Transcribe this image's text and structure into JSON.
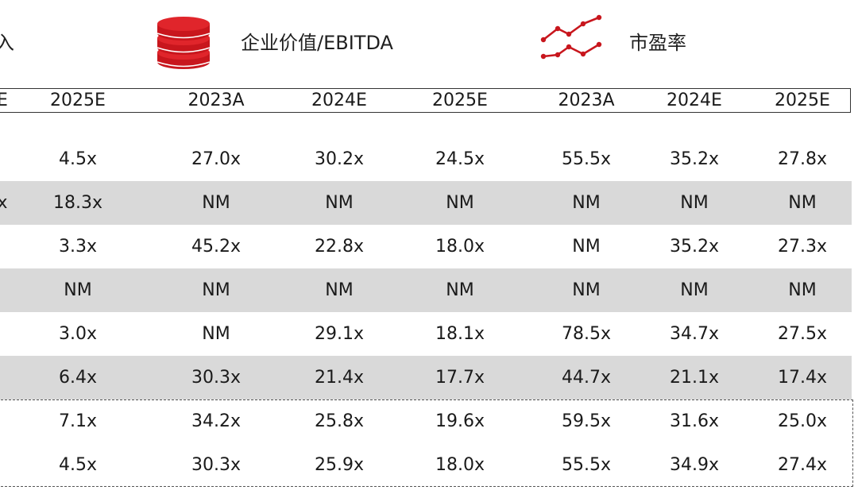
{
  "header": {
    "left_fragment": "入",
    "ev_label": "企业价值/EBITDA",
    "pe_label": "市盈率",
    "icons": [
      "coins-stack-icon",
      "trend-lines-icon"
    ],
    "accent_color": "#c8161d"
  },
  "years": {
    "cut_label": "E",
    "labels": [
      "2025E",
      "2023A",
      "2024E",
      "2025E",
      "2023A",
      "2024E",
      "2025E"
    ]
  },
  "rows": [
    {
      "cut": "",
      "cells": [
        "4.5x",
        "27.0x",
        "30.2x",
        "24.5x",
        "55.5x",
        "35.2x",
        "27.8x"
      ],
      "shaded": false
    },
    {
      "cut": "x",
      "cells": [
        "18.3x",
        "NM",
        "NM",
        "NM",
        "NM",
        "NM",
        "NM"
      ],
      "shaded": true
    },
    {
      "cut": "",
      "cells": [
        "3.3x",
        "45.2x",
        "22.8x",
        "18.0x",
        "NM",
        "35.2x",
        "27.3x"
      ],
      "shaded": false
    },
    {
      "cut": "",
      "cells": [
        "NM",
        "NM",
        "NM",
        "NM",
        "NM",
        "NM",
        "NM"
      ],
      "shaded": true
    },
    {
      "cut": "",
      "cells": [
        "3.0x",
        "NM",
        "29.1x",
        "18.1x",
        "78.5x",
        "34.7x",
        "27.5x"
      ],
      "shaded": false
    },
    {
      "cut": "",
      "cells": [
        "6.4x",
        "30.3x",
        "21.4x",
        "17.7x",
        "44.7x",
        "21.1x",
        "17.4x"
      ],
      "shaded": true
    },
    {
      "cut": "",
      "cells": [
        "7.1x",
        "34.2x",
        "25.8x",
        "19.6x",
        "59.5x",
        "31.6x",
        "25.0x"
      ],
      "shaded": false
    },
    {
      "cut": "",
      "cells": [
        "4.5x",
        "30.3x",
        "25.9x",
        "18.0x",
        "55.5x",
        "34.9x",
        "27.4x"
      ],
      "shaded": false
    }
  ]
}
